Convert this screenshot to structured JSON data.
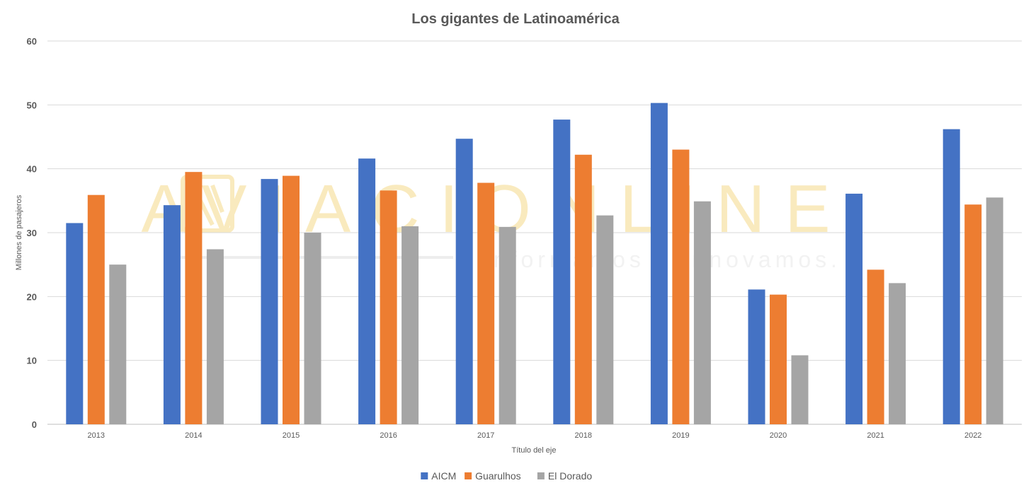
{
  "chart_data": {
    "type": "bar",
    "title": "Los gigantes de Latinoamérica",
    "xlabel": "Título del eje",
    "ylabel": "Millones de pasajeros",
    "categories": [
      "2013",
      "2014",
      "2015",
      "2016",
      "2017",
      "2018",
      "2019",
      "2020",
      "2021",
      "2022"
    ],
    "series": [
      {
        "name": "AICM",
        "color": "#4472C4",
        "values": [
          31.5,
          34.3,
          38.4,
          41.6,
          44.7,
          47.7,
          50.3,
          21.1,
          36.1,
          46.2
        ]
      },
      {
        "name": "Guarulhos",
        "color": "#ED7D31",
        "values": [
          35.9,
          39.5,
          38.9,
          36.6,
          37.8,
          42.2,
          43.0,
          20.3,
          24.2,
          34.4
        ]
      },
      {
        "name": "El Dorado",
        "color": "#A5A5A5",
        "values": [
          25.0,
          27.4,
          30.0,
          31.0,
          30.9,
          32.7,
          34.9,
          10.8,
          22.1,
          35.5
        ]
      }
    ],
    "ylim": [
      0,
      60
    ],
    "yticks": [
      0,
      10,
      20,
      30,
      40,
      50,
      60
    ],
    "grid": true,
    "legend_position": "bottom"
  },
  "watermark": {
    "title": "AVIACIONLINE",
    "subtitle": "Informamos y Innovamos.",
    "color": "#F5D98A"
  }
}
